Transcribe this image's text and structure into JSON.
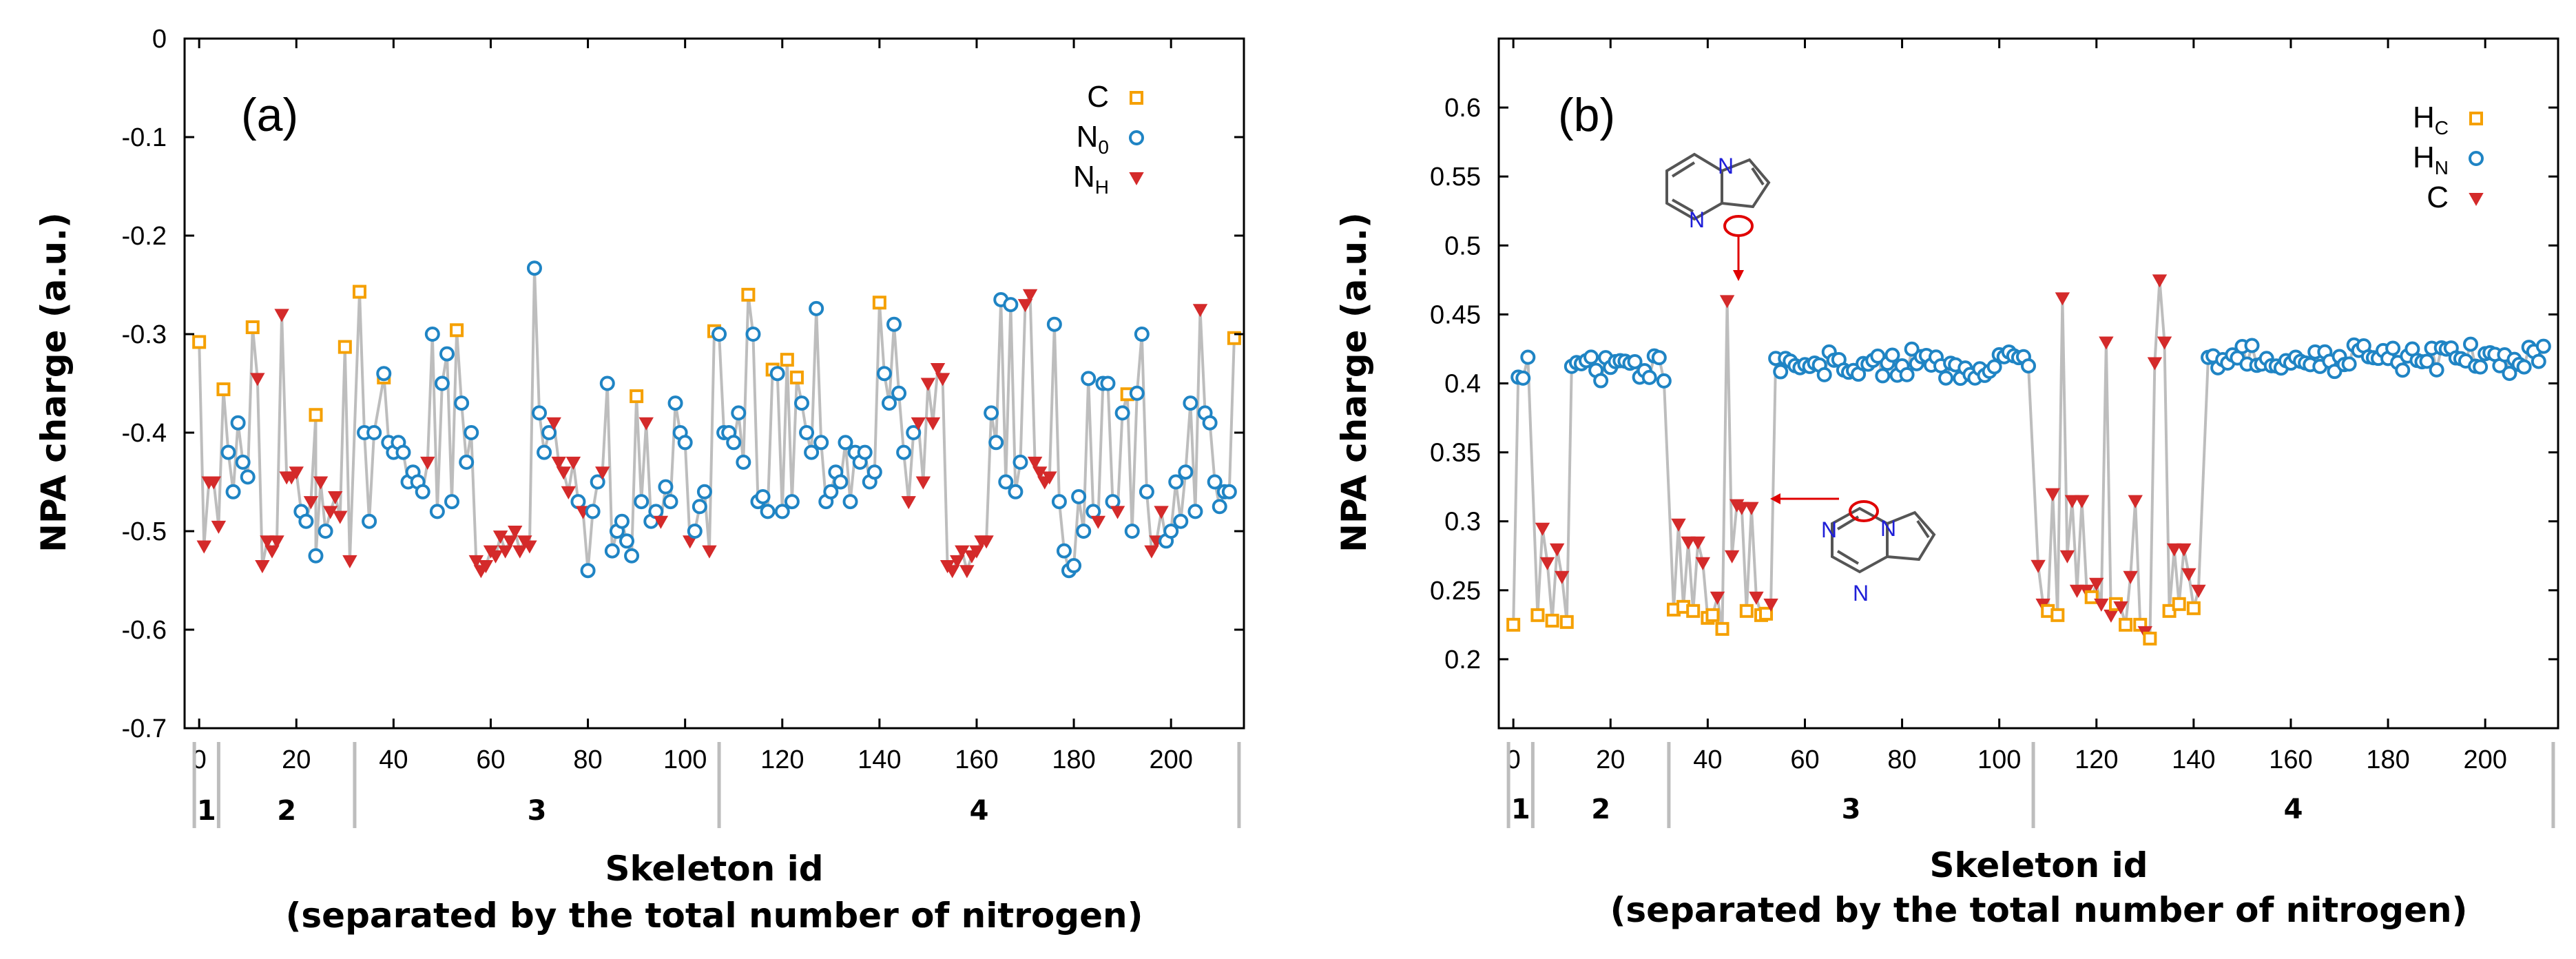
{
  "colors": {
    "orange": "#f5a000",
    "blue": "#1f84c4",
    "red": "#d42a2a",
    "line": "#bdbdbd",
    "arrow": "#e00000",
    "nitrogen": "#1f1fd8"
  },
  "chart_data": [
    {
      "panel": "(a)",
      "type": "line",
      "xlabel": "Skeleton id",
      "xlabel2": "(separated by the total number of nitrogen)",
      "ylabel": "NPA charge (a.u.)",
      "xlim": [
        -3,
        215
      ],
      "ylim": [
        -0.7,
        0
      ],
      "xticks": [
        0,
        20,
        40,
        60,
        80,
        100,
        120,
        140,
        160,
        180,
        200
      ],
      "yticks": [
        0,
        -0.1,
        -0.2,
        -0.3,
        -0.4,
        -0.5,
        -0.6,
        -0.7
      ],
      "ytick_labels": [
        "0",
        "-0.1",
        "-0.2",
        "-0.3",
        "-0.4",
        "-0.5",
        "-0.6",
        "-0.7"
      ],
      "legend": {
        "position": "top-right",
        "entries": [
          {
            "main": "C",
            "sub": "",
            "marker": "square",
            "color": "orange"
          },
          {
            "main": "N",
            "sub": "0",
            "marker": "circle",
            "color": "blue"
          },
          {
            "main": "N",
            "sub": "H",
            "marker": "triangle",
            "color": "red"
          }
        ]
      },
      "groups": [
        {
          "label": "1",
          "start": -1,
          "end": 4
        },
        {
          "label": "2",
          "start": 4,
          "end": 32
        },
        {
          "label": "3",
          "start": 32,
          "end": 107
        },
        {
          "label": "4",
          "start": 107,
          "end": 214
        }
      ],
      "series": [
        {
          "name": "C",
          "color": "orange",
          "marker": "square",
          "x": [
            0,
            5,
            11,
            24,
            30,
            33,
            38,
            53,
            90,
            106,
            113,
            118,
            121,
            123,
            140,
            191,
            213
          ],
          "y": [
            -0.308,
            -0.356,
            -0.293,
            -0.382,
            -0.313,
            -0.257,
            -0.344,
            -0.296,
            -0.363,
            -0.297,
            -0.26,
            -0.336,
            -0.326,
            -0.344,
            -0.268,
            -0.361,
            -0.304
          ]
        },
        {
          "name": "N0",
          "color": "blue",
          "marker": "circle",
          "x": [
            6,
            7,
            8,
            9,
            10,
            21,
            22,
            24,
            26,
            34,
            35,
            36,
            38,
            39,
            40,
            41,
            42,
            43,
            44,
            45,
            46,
            48,
            49,
            50,
            51,
            52,
            54,
            55,
            56,
            69,
            70,
            71,
            72,
            78,
            80,
            81,
            82,
            84,
            85,
            86,
            87,
            88,
            89,
            91,
            93,
            94,
            96,
            97,
            98,
            99,
            100,
            102,
            103,
            104,
            107,
            108,
            109,
            110,
            111,
            112,
            114,
            115,
            116,
            117,
            119,
            120,
            122,
            124,
            125,
            126,
            127,
            128,
            129,
            130,
            131,
            132,
            133,
            134,
            135,
            136,
            137,
            138,
            139,
            141,
            142,
            143,
            144,
            145,
            147,
            163,
            164,
            165,
            166,
            167,
            168,
            169,
            176,
            177,
            178,
            179,
            180,
            181,
            182,
            183,
            184,
            186,
            187,
            188,
            190,
            192,
            193,
            194,
            195,
            199,
            200,
            201,
            202,
            203,
            204,
            205,
            207,
            208,
            209,
            210,
            211,
            212
          ],
          "y": [
            -0.42,
            -0.46,
            -0.39,
            -0.43,
            -0.445,
            -0.48,
            -0.49,
            -0.525,
            -0.5,
            -0.4,
            -0.49,
            -0.4,
            -0.34,
            -0.41,
            -0.42,
            -0.41,
            -0.42,
            -0.45,
            -0.44,
            -0.45,
            -0.46,
            -0.3,
            -0.48,
            -0.35,
            -0.32,
            -0.47,
            -0.37,
            -0.43,
            -0.4,
            -0.233,
            -0.38,
            -0.42,
            -0.4,
            -0.47,
            -0.54,
            -0.48,
            -0.45,
            -0.35,
            -0.52,
            -0.5,
            -0.49,
            -0.51,
            -0.525,
            -0.47,
            -0.49,
            -0.48,
            -0.455,
            -0.47,
            -0.37,
            -0.4,
            -0.41,
            -0.5,
            -0.475,
            -0.46,
            -0.3,
            -0.4,
            -0.4,
            -0.41,
            -0.38,
            -0.43,
            -0.3,
            -0.47,
            -0.465,
            -0.48,
            -0.34,
            -0.48,
            -0.47,
            -0.37,
            -0.4,
            -0.42,
            -0.274,
            -0.41,
            -0.47,
            -0.46,
            -0.44,
            -0.45,
            -0.41,
            -0.47,
            -0.42,
            -0.43,
            -0.42,
            -0.45,
            -0.44,
            -0.34,
            -0.37,
            -0.29,
            -0.36,
            -0.42,
            -0.4,
            -0.38,
            -0.41,
            -0.265,
            -0.45,
            -0.27,
            -0.46,
            -0.43,
            -0.29,
            -0.47,
            -0.52,
            -0.54,
            -0.535,
            -0.465,
            -0.5,
            -0.345,
            -0.48,
            -0.35,
            -0.35,
            -0.47,
            -0.38,
            -0.5,
            -0.36,
            -0.3,
            -0.46,
            -0.51,
            -0.5,
            -0.45,
            -0.49,
            -0.44,
            -0.37,
            -0.48,
            -0.38,
            -0.39,
            -0.45,
            -0.475,
            -0.46,
            -0.46
          ]
        },
        {
          "name": "NH",
          "color": "red",
          "marker": "triangle",
          "x": [
            1,
            2,
            3,
            4,
            12,
            13,
            14,
            15,
            16,
            17,
            18,
            19,
            20,
            23,
            25,
            27,
            28,
            29,
            31,
            47,
            57,
            58,
            59,
            60,
            61,
            62,
            63,
            64,
            65,
            66,
            67,
            68,
            73,
            74,
            75,
            76,
            77,
            79,
            83,
            92,
            95,
            101,
            105,
            146,
            148,
            149,
            150,
            151,
            152,
            153,
            154,
            155,
            156,
            157,
            158,
            159,
            160,
            161,
            162,
            170,
            171,
            172,
            173,
            174,
            175,
            185,
            189,
            196,
            197,
            198,
            206
          ],
          "y": [
            -0.515,
            -0.45,
            -0.45,
            -0.495,
            -0.345,
            -0.535,
            -0.51,
            -0.52,
            -0.51,
            -0.28,
            -0.445,
            -0.445,
            -0.44,
            -0.47,
            -0.45,
            -0.48,
            -0.465,
            -0.485,
            -0.53,
            -0.43,
            -0.53,
            -0.54,
            -0.535,
            -0.52,
            -0.525,
            -0.505,
            -0.52,
            -0.51,
            -0.5,
            -0.52,
            -0.51,
            -0.515,
            -0.39,
            -0.43,
            -0.44,
            -0.46,
            -0.43,
            -0.48,
            -0.44,
            -0.39,
            -0.49,
            -0.51,
            -0.52,
            -0.47,
            -0.39,
            -0.45,
            -0.35,
            -0.39,
            -0.335,
            -0.345,
            -0.535,
            -0.54,
            -0.53,
            -0.52,
            -0.54,
            -0.525,
            -0.52,
            -0.51,
            -0.51,
            -0.27,
            -0.26,
            -0.43,
            -0.44,
            -0.45,
            -0.445,
            -0.49,
            -0.48,
            -0.52,
            -0.51,
            -0.48,
            -0.275
          ]
        }
      ]
    },
    {
      "panel": "(b)",
      "type": "line",
      "xlabel": "Skeleton id",
      "xlabel2": "(separated by the total number of nitrogen)",
      "ylabel": "NPA charge (a.u.)",
      "xlim": [
        -3,
        215
      ],
      "ylim": [
        0.15,
        0.65
      ],
      "xticks": [
        0,
        20,
        40,
        60,
        80,
        100,
        120,
        140,
        160,
        180,
        200
      ],
      "yticks": [
        0.2,
        0.25,
        0.3,
        0.35,
        0.4,
        0.45,
        0.5,
        0.55,
        0.6
      ],
      "ytick_labels": [
        "0.2",
        "0.25",
        "0.3",
        "0.35",
        "0.4",
        "0.45",
        "0.5",
        "0.55",
        "0.6"
      ],
      "legend": {
        "position": "top-right",
        "entries": [
          {
            "main": "H",
            "sub": "C",
            "marker": "square",
            "color": "orange"
          },
          {
            "main": "H",
            "sub": "N",
            "marker": "circle",
            "color": "blue"
          },
          {
            "main": "C",
            "sub": "",
            "marker": "triangle",
            "color": "red"
          }
        ]
      },
      "annotations": [
        {
          "structure": "imidazopyrimidine",
          "label": "N",
          "points_to": 44
        },
        {
          "structure": "pyrrolotriazine",
          "label": "N",
          "points_to": 51
        }
      ],
      "groups": [
        {
          "label": "1",
          "start": -1,
          "end": 4
        },
        {
          "label": "2",
          "start": 4,
          "end": 32
        },
        {
          "label": "3",
          "start": 32,
          "end": 107
        },
        {
          "label": "4",
          "start": 107,
          "end": 214
        }
      ],
      "series": [
        {
          "name": "HC",
          "color": "orange",
          "marker": "square",
          "x": [
            0,
            5,
            8,
            11,
            33,
            35,
            37,
            40,
            41,
            43,
            48,
            51,
            52,
            110,
            112,
            119,
            124,
            126,
            129,
            131,
            135,
            137,
            140
          ],
          "y": [
            0.225,
            0.232,
            0.228,
            0.227,
            0.236,
            0.238,
            0.235,
            0.23,
            0.232,
            0.222,
            0.235,
            0.232,
            0.233,
            0.235,
            0.232,
            0.245,
            0.24,
            0.225,
            0.225,
            0.215,
            0.235,
            0.24,
            0.237
          ],
          "note": "Grid of orange squares near the 0.22-0.24 band"
        },
        {
          "name": "HN",
          "color": "blue",
          "marker": "circle",
          "segments": [
            {
              "start": 1,
              "end": 3,
              "base": 0.409
            },
            {
              "start": 12,
              "end": 31,
              "base": 0.412
            },
            {
              "start": 54,
              "end": 106,
              "base": 0.413
            },
            {
              "start": 143,
              "end": 212,
              "base": 0.418
            }
          ]
        },
        {
          "name": "C",
          "color": "red",
          "marker": "triangle",
          "x": [
            6,
            7,
            9,
            10,
            34,
            36,
            38,
            39,
            42,
            44,
            45,
            46,
            47,
            49,
            50,
            53,
            108,
            109,
            111,
            113,
            114,
            115,
            116,
            117,
            118,
            120,
            121,
            122,
            123,
            125,
            127,
            128,
            130,
            132,
            133,
            134,
            136,
            138,
            139,
            141
          ],
          "y": [
            0.295,
            0.27,
            0.28,
            0.26,
            0.298,
            0.285,
            0.285,
            0.27,
            0.245,
            0.46,
            0.275,
            0.312,
            0.31,
            0.31,
            0.245,
            0.24,
            0.268,
            0.24,
            0.32,
            0.462,
            0.275,
            0.315,
            0.25,
            0.315,
            0.25,
            0.255,
            0.24,
            0.43,
            0.232,
            0.238,
            0.26,
            0.315,
            0.22,
            0.415,
            0.475,
            0.43,
            0.28,
            0.28,
            0.262,
            0.25
          ]
        }
      ]
    }
  ]
}
